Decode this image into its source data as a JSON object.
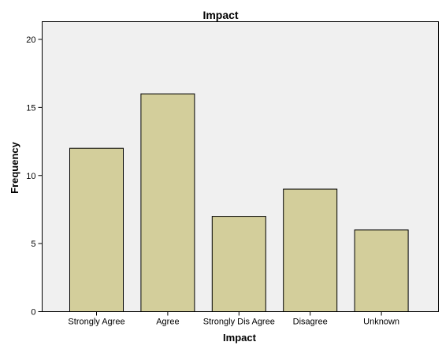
{
  "chart_data": {
    "type": "bar",
    "title": "Impact",
    "xlabel": "Impact",
    "ylabel": "Frequency",
    "categories": [
      "Strongly Agree",
      "Agree",
      "Strongly Dis Agree",
      "Disagree",
      "Unknown"
    ],
    "values": [
      12,
      16,
      7,
      9,
      6
    ],
    "ylim": [
      0,
      20
    ],
    "yticks": [
      0,
      5,
      10,
      15,
      20
    ],
    "ytick_labels": [
      "0",
      "5",
      "10",
      "15",
      "20"
    ],
    "grid": false,
    "colors": {
      "bar_fill": "#d3ce9b",
      "plot_background": "#f0f0f0",
      "outline": "#000000"
    }
  }
}
